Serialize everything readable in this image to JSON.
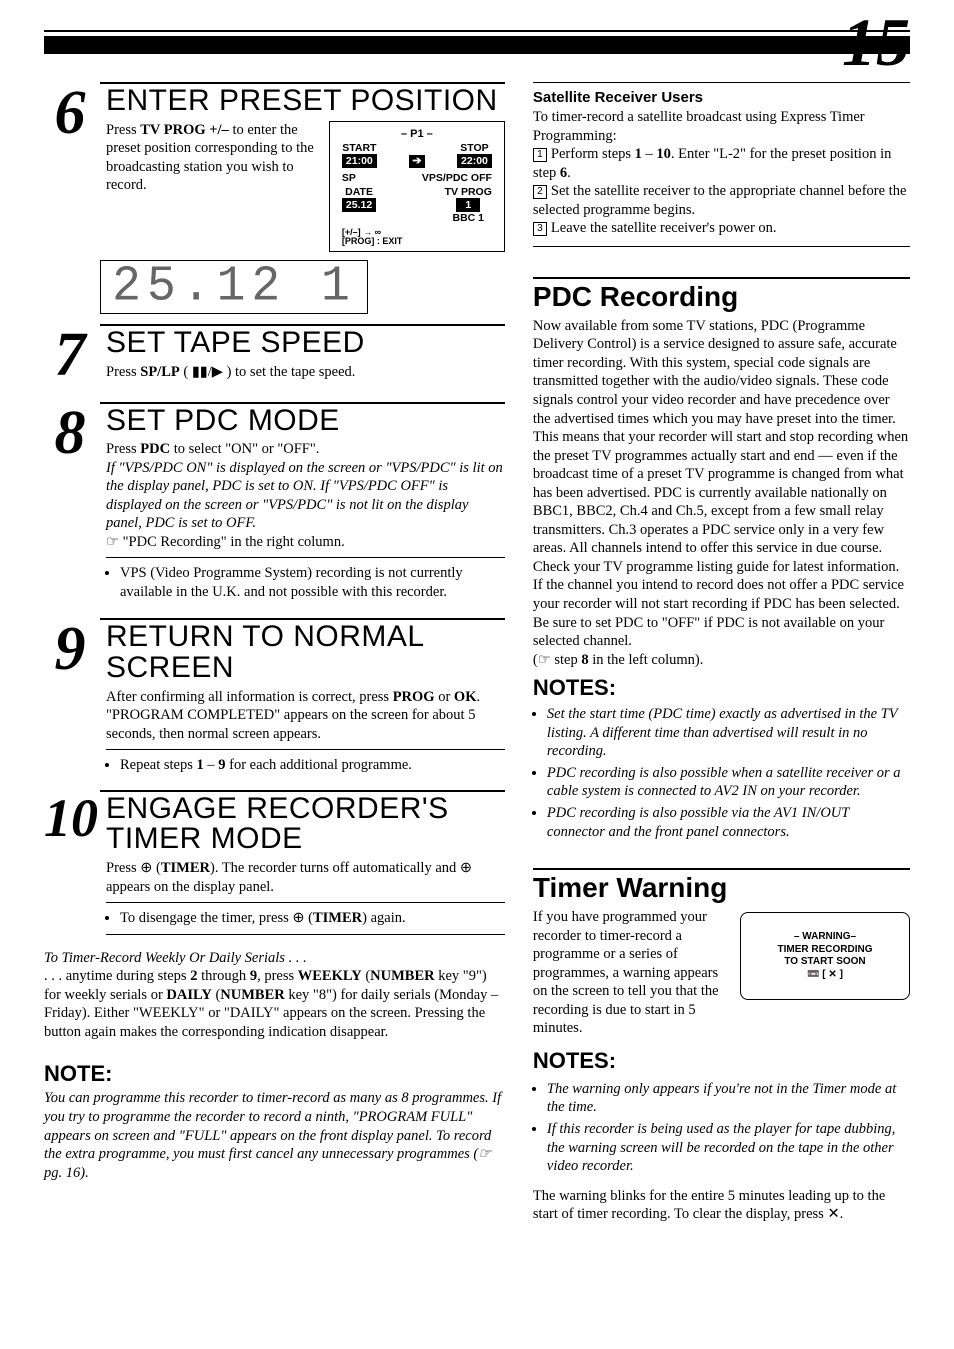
{
  "page_number": "15",
  "left": {
    "step6": {
      "num": "6",
      "heading": "ENTER PRESET POSITION",
      "body_html": "Press <b>TV PROG +/–</b> to enter the preset position corresponding to the broadcasting station you wish to record.",
      "osd": {
        "title": "– P1 –",
        "start_label": "START",
        "start_val": "21:00",
        "stop_label": "STOP",
        "stop_val": "22:00",
        "sp": "SP",
        "vps": "VPS/PDC OFF",
        "date_label": "DATE",
        "date_val": "25.12",
        "tvprog_label": "TV PROG",
        "tvprog_val": "1",
        "tvprog_ch": "BBC 1",
        "hint1": "[+/–] → ∞",
        "hint2": "[PROG] : EXIT"
      }
    },
    "seg_display": "25.12  1",
    "step7": {
      "num": "7",
      "heading": "SET TAPE SPEED",
      "body_html": "Press <b>SP/LP</b> ( ▮▮/▶ ) to set the tape speed."
    },
    "step8": {
      "num": "8",
      "heading": "SET PDC MODE",
      "line1_html": "Press <b>PDC</b> to select \"ON\" or \"OFF\".",
      "italic_html": "If \"VPS/PDC ON\" is displayed on the screen or \"VPS/PDC\" is lit on the display panel, PDC is set to ON. If \"VPS/PDC OFF\" is displayed on the screen or \"VPS/PDC\" is not lit on the display panel, PDC is set to OFF.",
      "ref_html": "☞ \"PDC Recording\" in the right column.",
      "bullet_html": "VPS (Video Programme System) recording is not currently available in the U.K. and not possible with this recorder."
    },
    "step9": {
      "num": "9",
      "heading": "RETURN TO NORMAL SCREEN",
      "body_html": "After confirming all information is correct, press <b>PROG</b> or <b>OK</b>. \"PROGRAM COMPLETED\" appears on the screen for about 5 seconds, then normal screen appears.",
      "bullet_html": "Repeat steps <b>1</b> – <b>9</b> for each additional programme."
    },
    "step10": {
      "num": "10",
      "heading": "ENGAGE RECORDER'S TIMER MODE",
      "body_html": "Press ⊕ (<b>TIMER</b>). The recorder turns off automatically and ⊕ appears on the display panel.",
      "bullet_html": "To disengage the timer, press ⊕ (<b>TIMER</b>) again."
    },
    "serials": {
      "lead": "To Timer-Record Weekly Or Daily Serials . . .",
      "body_html": ". . . anytime during steps <b>2</b> through <b>9</b>, press <b>WEEKLY</b> (<b>NUMBER</b> key \"9\") for weekly serials or <b>DAILY</b> (<b>NUMBER</b> key \"8\") for daily serials (Monday – Friday). Either \"WEEKLY\" or \"DAILY\" appears on the screen. Pressing the button again makes the corresponding indication disappear."
    },
    "note": {
      "head": "NOTE:",
      "body_html": "You can programme this recorder to timer-record as many as 8 programmes. If you try to programme the recorder to record a ninth, \"PROGRAM FULL\" appears on screen and \"FULL\" appears on the front display panel. To record the extra programme, you must first cancel any unnecessary programmes (☞ pg. 16)."
    }
  },
  "right": {
    "sat": {
      "head": "Satellite Receiver Users",
      "intro": "To timer-record a satellite broadcast using Express Timer Programming:",
      "i1_html": "Perform steps <b>1</b> – <b>10</b>. Enter \"L-2\" for the preset position in step <b>6</b>.",
      "i2": "Set the satellite receiver to the appropriate channel before the selected programme begins.",
      "i3": "Leave the satellite receiver's power on."
    },
    "pdc": {
      "head": "PDC Recording",
      "body_html": "Now available from some TV stations, PDC (Programme Delivery Control) is a service designed to assure safe, accurate timer recording. With this system, special code signals are transmitted together with the audio/video signals. These code signals control your video recorder and have precedence over the advertised times which you may have preset into the timer. This means that your recorder will start and stop recording when the preset TV programmes actually start and end — even if the broadcast time of a preset TV programme is changed from what has been advertised. PDC is currently available nationally on BBC1, BBC2, Ch.4 and Ch.5, except from a few small relay transmitters. Ch.3 operates a PDC service only in a very few areas. All channels intend to offer this service in due course. Check your TV programme listing guide for latest information. If the channel you intend to record does not offer a PDC service your recorder will not start recording if PDC has been selected. Be sure to set PDC to \"OFF\" if PDC is not available on your selected channel.",
      "ref_html": "(☞ step <b>8</b> in the left column).",
      "notes_head": "NOTES:",
      "n1": "Set the start time (PDC time) exactly as advertised in the TV listing. A different time than advertised will result in no recording.",
      "n2": "PDC recording is also possible when a satellite receiver or a cable system is connected to AV2 IN on your recorder.",
      "n3": "PDC recording is also possible via the AV1 IN/OUT connector and the front panel connectors."
    },
    "timer": {
      "head": "Timer Warning",
      "body": "If you have programmed your recorder to timer-record a programme or a series of programmes, a warning appears on the screen to tell you that the recording is due to start in 5 minutes.",
      "warn_line1": "– WARNING–",
      "warn_line2": "TIMER  RECORDING",
      "warn_line3": "TO  START  SOON",
      "warn_line4": "📼 [ ✕ ]",
      "notes_head": "NOTES:",
      "n1": "The warning only appears if you're not in the Timer mode at the time.",
      "n2": "If this recorder is being used as the player for tape dubbing, the warning screen will be recorded on the tape in the other video recorder.",
      "tail_html": "The warning blinks for the entire 5 minutes leading up to the start of timer recording. To clear the display, press ✕."
    }
  }
}
